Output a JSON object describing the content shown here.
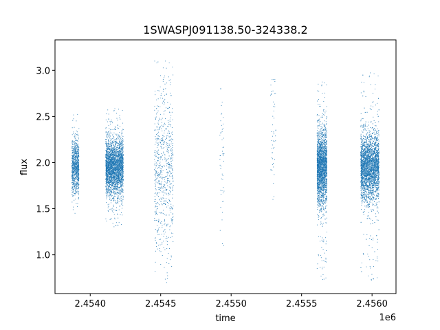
{
  "chart_data": {
    "type": "scatter",
    "title": "1SWASPJ091138.50-324338.2",
    "xlabel": "time",
    "ylabel": "flux",
    "x_offset_label": "1e6",
    "xlim": [
      2453750,
      2456170
    ],
    "ylim": [
      0.58,
      3.33
    ],
    "grid": false,
    "legend": "none",
    "marker_color": "#1f77b4",
    "x_ticks": [
      2454000,
      2454500,
      2455000,
      2455500,
      2456000
    ],
    "x_tick_labels": [
      "2.4540",
      "2.4545",
      "2.4550",
      "2.4555",
      "2.4560"
    ],
    "y_ticks": [
      1.0,
      1.5,
      2.0,
      2.5,
      3.0
    ],
    "y_tick_labels": [
      "1.0",
      "1.5",
      "2.0",
      "2.5",
      "3.0"
    ],
    "series": [
      {
        "clusters": [
          {
            "x": [
              2453870,
              2453920
            ],
            "center": 1.95,
            "spread": 0.15,
            "range": [
              1.45,
              2.55
            ],
            "count": 900
          },
          {
            "x": [
              2454110,
              2454235
            ],
            "center": 1.95,
            "spread": 0.15,
            "range": [
              1.3,
              2.6
            ],
            "count": 3000
          },
          {
            "x": [
              2454455,
              2454590
            ],
            "center": 1.95,
            "spread": 0.45,
            "range": [
              0.7,
              3.1
            ],
            "count": 700
          },
          {
            "x": [
              2454920,
              2454950
            ],
            "center": 2.0,
            "spread": 0.35,
            "range": [
              1.1,
              2.8
            ],
            "count": 50
          },
          {
            "x": [
              2455280,
              2455320
            ],
            "center": 2.3,
            "spread": 0.35,
            "range": [
              1.6,
              2.9
            ],
            "count": 50
          },
          {
            "x": [
              2455610,
              2455680
            ],
            "center": 1.95,
            "spread": 0.2,
            "range": [
              0.7,
              2.9
            ],
            "count": 2400
          },
          {
            "x": [
              2455920,
              2456050
            ],
            "center": 1.95,
            "spread": 0.18,
            "range": [
              0.7,
              3.0
            ],
            "count": 3600
          }
        ]
      }
    ]
  }
}
